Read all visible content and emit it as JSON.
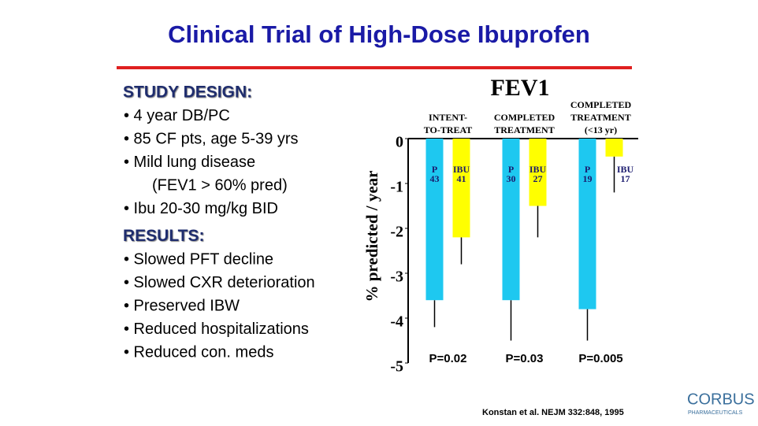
{
  "slide": {
    "title": "Clinical Trial of  High-Dose Ibuprofen",
    "sections": [
      {
        "heading": "STUDY DESIGN:",
        "bullets": [
          "• 4 year DB/PC",
          "• 85 CF pts, age 5-39 yrs",
          "• Mild lung disease",
          "(FEV1 > 60% pred)",
          "• Ibu 20-30 mg/kg BID"
        ]
      },
      {
        "heading": "RESULTS:",
        "bullets": [
          "• Slowed PFT decline",
          "• Slowed CXR deterioration",
          "• Preserved IBW",
          "• Reduced hospitalizations",
          "• Reduced con. meds"
        ]
      }
    ],
    "citation": "Konstan et al. NEJM 332:848, 1995",
    "logo": "CORBUS",
    "logo_sub": "PHARMACEUTICALS"
  },
  "chart_data": {
    "type": "bar",
    "title": "FEV1",
    "y_label": "% predicted / year",
    "categories": [
      [
        "INTENT-",
        "TO-TREAT"
      ],
      [
        "COMPLETED",
        "TREATMENT"
      ],
      [
        "COMPLETED",
        "TREATMENT",
        "(<13 yr)"
      ]
    ],
    "series": [
      {
        "name": "P",
        "color": "#1ec8f0",
        "values": [
          -3.6,
          -3.6,
          -3.8
        ],
        "errors": [
          0.6,
          0.9,
          0.7
        ],
        "n": [
          43,
          30,
          19
        ]
      },
      {
        "name": "IBU",
        "color": "#ffff00",
        "values": [
          -2.2,
          -1.5,
          -0.4
        ],
        "errors": [
          0.6,
          0.7,
          0.8
        ],
        "n": [
          41,
          27,
          17
        ]
      }
    ],
    "annotations": [
      "P=0.02",
      "P=0.03",
      "P=0.005"
    ],
    "ylim": [
      -5,
      0
    ],
    "yticks": [
      0,
      -1,
      -2,
      -3,
      -4,
      -5
    ]
  }
}
